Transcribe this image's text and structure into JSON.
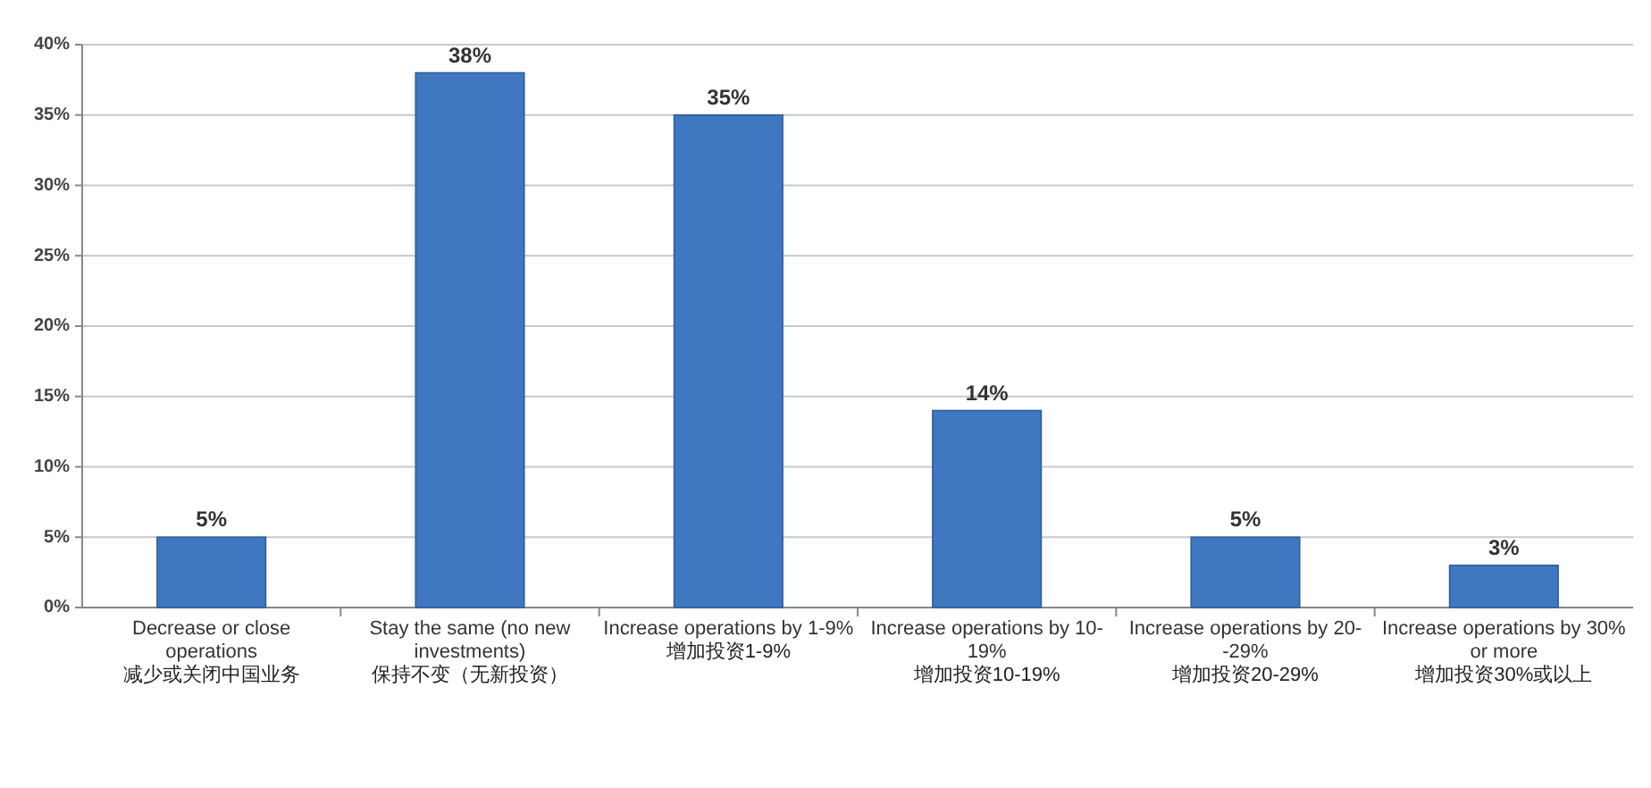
{
  "chart_data": {
    "type": "bar",
    "categories": [
      "Decrease or close operations\n减少或关闭中国业务",
      "Stay the same (no new investments)\n保持不变（无新投资）",
      "Increase operations by 1-9%\n增加投资1-9%",
      "Increase operations by 10-19%\n增加投资10-19%",
      "Increase operations by 20--29%\n增加投资20-29%",
      "Increase operations by 30% or more\n增加投资30%或以上"
    ],
    "values": [
      5,
      38,
      35,
      14,
      5,
      3
    ],
    "value_labels": [
      "5%",
      "38%",
      "35%",
      "14%",
      "5%",
      "3%"
    ],
    "color": "#3f78c0",
    "ylim": [
      0,
      40
    ],
    "yticks": [
      {
        "value": 0,
        "label": "0%"
      },
      {
        "value": 5,
        "label": "5%"
      },
      {
        "value": 10,
        "label": "10%"
      },
      {
        "value": 15,
        "label": "15%"
      },
      {
        "value": 20,
        "label": "20%"
      },
      {
        "value": 25,
        "label": "25%"
      },
      {
        "value": 30,
        "label": "30%"
      },
      {
        "value": 35,
        "label": "35%"
      },
      {
        "value": 40,
        "label": "40%"
      }
    ],
    "grid": "y"
  }
}
